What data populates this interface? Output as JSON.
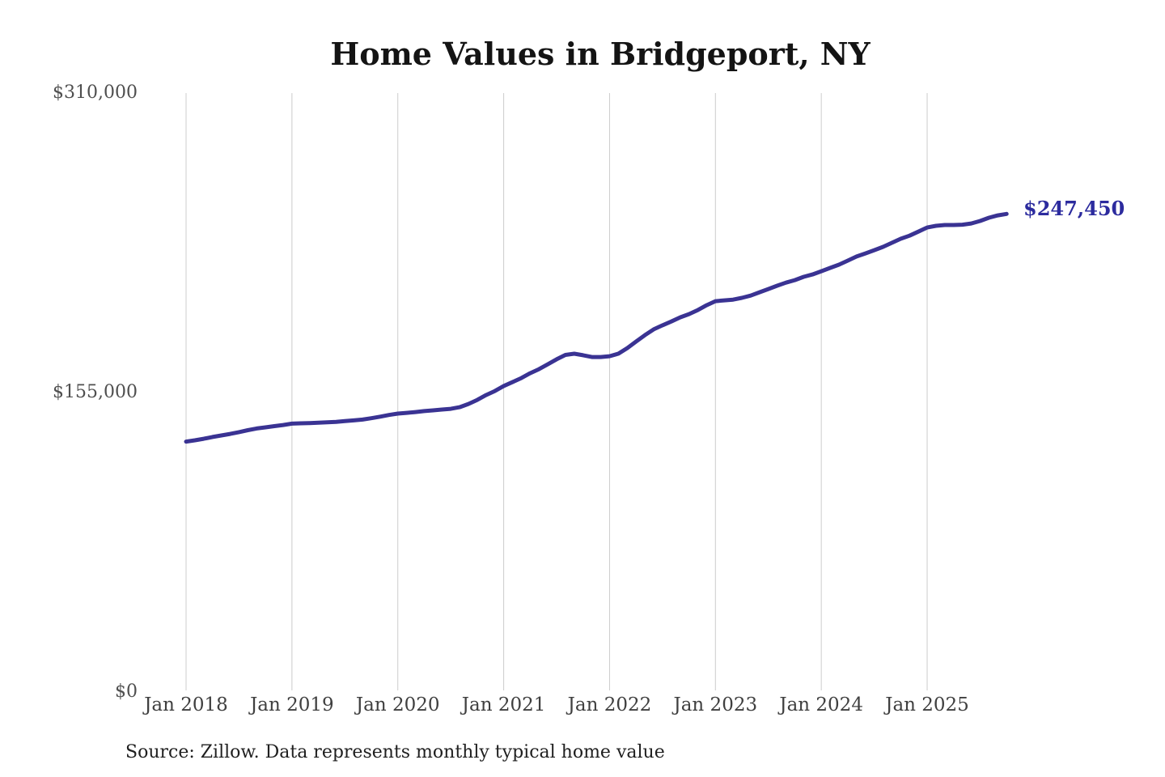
{
  "title": "Home Values in Bridgeport, NY",
  "source_note": "Source: Zillow. Data represents monthly typical home value",
  "end_label": "$247,450",
  "colors": {
    "line": "#3a3393",
    "end_label": "#2c2b9e",
    "gridline": "#cccccc",
    "title_text": "#141414",
    "y_axis_text": "#4f4f4f",
    "x_axis_text": "#3f3f3f",
    "source_text": "#1f1f1f",
    "background": "#ffffff"
  },
  "chart_data": {
    "type": "line",
    "title": "Home Values in Bridgeport, NY",
    "xlabel": "",
    "ylabel": "",
    "ylim": [
      0,
      310000
    ],
    "grid": "vertical-only",
    "legend": "none",
    "line_width": 5,
    "x_tick_labels": [
      "Jan 2018",
      "Jan 2019",
      "Jan 2020",
      "Jan 2021",
      "Jan 2022",
      "Jan 2023",
      "Jan 2024",
      "Jan 2025"
    ],
    "y_ticks": [
      {
        "label": "$0",
        "value": 0
      },
      {
        "label": "$155,000",
        "value": 155000
      },
      {
        "label": "$310,000",
        "value": 310000
      }
    ],
    "annotation": {
      "text": "$247,450",
      "value": 247450,
      "position": "line-end"
    },
    "x": [
      "2018-01",
      "2018-02",
      "2018-03",
      "2018-04",
      "2018-05",
      "2018-06",
      "2018-07",
      "2018-08",
      "2018-09",
      "2018-10",
      "2018-11",
      "2018-12",
      "2019-01",
      "2019-02",
      "2019-03",
      "2019-04",
      "2019-05",
      "2019-06",
      "2019-07",
      "2019-08",
      "2019-09",
      "2019-10",
      "2019-11",
      "2019-12",
      "2020-01",
      "2020-02",
      "2020-03",
      "2020-04",
      "2020-05",
      "2020-06",
      "2020-07",
      "2020-08",
      "2020-09",
      "2020-10",
      "2020-11",
      "2020-12",
      "2021-01",
      "2021-02",
      "2021-03",
      "2021-04",
      "2021-05",
      "2021-06",
      "2021-07",
      "2021-08",
      "2021-09",
      "2021-10",
      "2021-11",
      "2021-12",
      "2022-01",
      "2022-02",
      "2022-03",
      "2022-04",
      "2022-05",
      "2022-06",
      "2022-07",
      "2022-08",
      "2022-09",
      "2022-10",
      "2022-11",
      "2022-12",
      "2023-01",
      "2023-02",
      "2023-03",
      "2023-04",
      "2023-05",
      "2023-06",
      "2023-07",
      "2023-08",
      "2023-09",
      "2023-10",
      "2023-11",
      "2023-12",
      "2024-01",
      "2024-02",
      "2024-03",
      "2024-04",
      "2024-05",
      "2024-06",
      "2024-07",
      "2024-08",
      "2024-09",
      "2024-10",
      "2024-11",
      "2024-12",
      "2025-01",
      "2025-02",
      "2025-03",
      "2025-04",
      "2025-05",
      "2025-06",
      "2025-07",
      "2025-08",
      "2025-09",
      "2025-10"
    ],
    "values": [
      129600,
      130300,
      131100,
      132000,
      132800,
      133600,
      134500,
      135500,
      136400,
      137000,
      137600,
      138200,
      138900,
      139100,
      139200,
      139400,
      139600,
      139800,
      140200,
      140600,
      141000,
      141700,
      142500,
      143400,
      144100,
      144500,
      144900,
      145400,
      145800,
      146200,
      146600,
      147400,
      149100,
      151200,
      153700,
      155800,
      158400,
      160400,
      162500,
      165000,
      167100,
      169600,
      172200,
      174500,
      175100,
      174300,
      173400,
      173400,
      173800,
      175100,
      178000,
      181400,
      184700,
      187700,
      189800,
      191800,
      193900,
      195600,
      197700,
      200200,
      202300,
      202700,
      203100,
      204000,
      205200,
      206900,
      208600,
      210300,
      211900,
      213200,
      214900,
      216100,
      217800,
      219500,
      221200,
      223300,
      225400,
      227000,
      228700,
      230400,
      232500,
      234600,
      236200,
      238300,
      240400,
      241300,
      241700,
      241700,
      241900,
      242500,
      243800,
      245500,
      246700,
      247450
    ]
  }
}
